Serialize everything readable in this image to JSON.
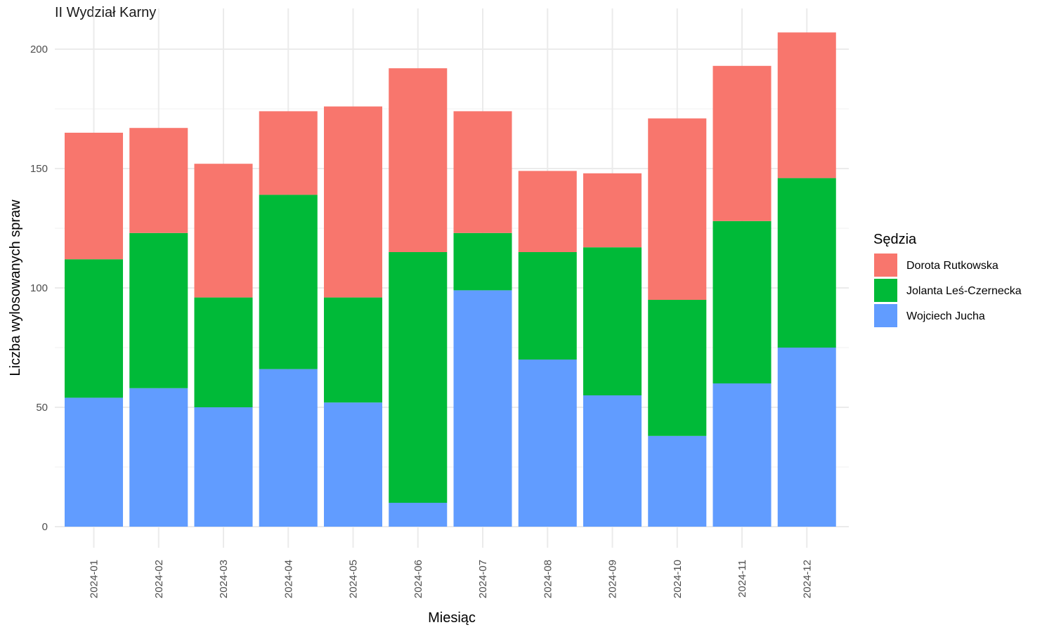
{
  "chart_data": {
    "type": "bar",
    "stacked": true,
    "title": "II Wydział Karny",
    "xlabel": "Miesiąc",
    "ylabel": "Liczba wylosowanych spraw",
    "ylim": [
      0,
      210
    ],
    "yticks": [
      0,
      50,
      100,
      150,
      200
    ],
    "grid": true,
    "legend_title": "Sędzia",
    "legend_position": "right",
    "categories": [
      "2024-01",
      "2024-02",
      "2024-03",
      "2024-04",
      "2024-05",
      "2024-06",
      "2024-07",
      "2024-08",
      "2024-09",
      "2024-10",
      "2024-11",
      "2024-12"
    ],
    "series": [
      {
        "name": "Wojciech Jucha",
        "color": "#619CFF",
        "values": [
          54,
          58,
          50,
          66,
          52,
          10,
          99,
          70,
          55,
          38,
          60,
          75
        ]
      },
      {
        "name": "Jolanta Leś-Czernecka",
        "color": "#00BA38",
        "values": [
          58,
          65,
          46,
          73,
          44,
          105,
          24,
          45,
          62,
          57,
          68,
          71
        ]
      },
      {
        "name": "Dorota Rutkowska",
        "color": "#F8766D",
        "values": [
          53,
          44,
          56,
          35,
          80,
          77,
          51,
          34,
          31,
          76,
          65,
          61
        ]
      }
    ],
    "legend_order": [
      "Dorota Rutkowska",
      "Jolanta Leś-Czernecka",
      "Wojciech Jucha"
    ]
  }
}
